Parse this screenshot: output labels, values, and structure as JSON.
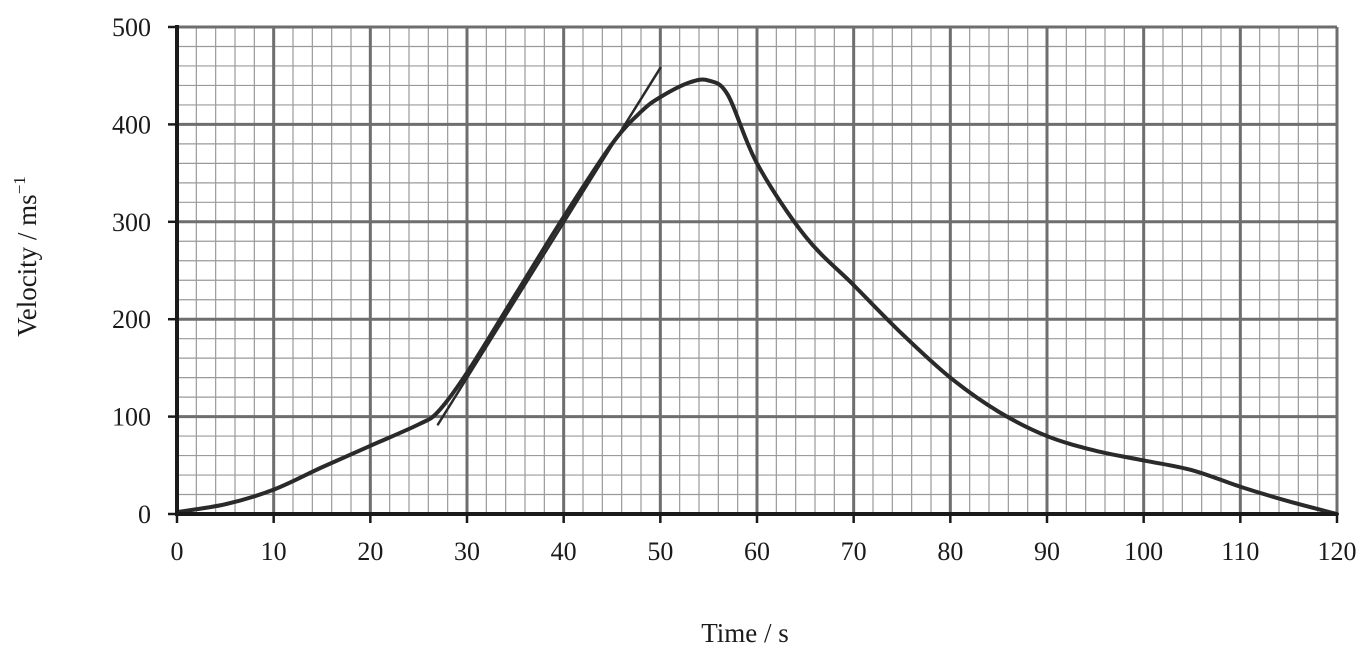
{
  "chart_data": {
    "type": "line",
    "xlabel": "Time / s",
    "ylabel": "Velocity / ms",
    "ylabel_superscript": "−1",
    "xlim": [
      0,
      120
    ],
    "ylim": [
      0,
      500
    ],
    "x_major_step": 10,
    "y_major_step": 100,
    "x_minor_step": 2,
    "y_minor_step": 20,
    "grid": true,
    "x_ticks": [
      "0",
      "10",
      "20",
      "30",
      "40",
      "50",
      "60",
      "70",
      "80",
      "90",
      "100",
      "110",
      "120"
    ],
    "y_ticks": [
      "0",
      "100",
      "200",
      "300",
      "400",
      "500"
    ],
    "series": [
      {
        "x": [
          0,
          5,
          10,
          15,
          20,
          25,
          27,
          30,
          35,
          40,
          45,
          48,
          50,
          53,
          55,
          57,
          60,
          65,
          70,
          75,
          80,
          85,
          90,
          95,
          100,
          105,
          110,
          115,
          120
        ],
        "y": [
          2,
          10,
          25,
          48,
          70,
          92,
          105,
          145,
          225,
          305,
          380,
          413,
          428,
          443,
          445,
          430,
          360,
          285,
          235,
          185,
          140,
          105,
          80,
          65,
          55,
          45,
          28,
          13,
          0
        ]
      }
    ],
    "tangent_line": {
      "x": [
        27,
        50
      ],
      "y": [
        92,
        458
      ]
    },
    "colors": {
      "curve": "#2a2a2a",
      "grid_major": "#6e6e6e",
      "grid_minor": "#9a9a9a",
      "axis": "#1a1a1a"
    }
  }
}
